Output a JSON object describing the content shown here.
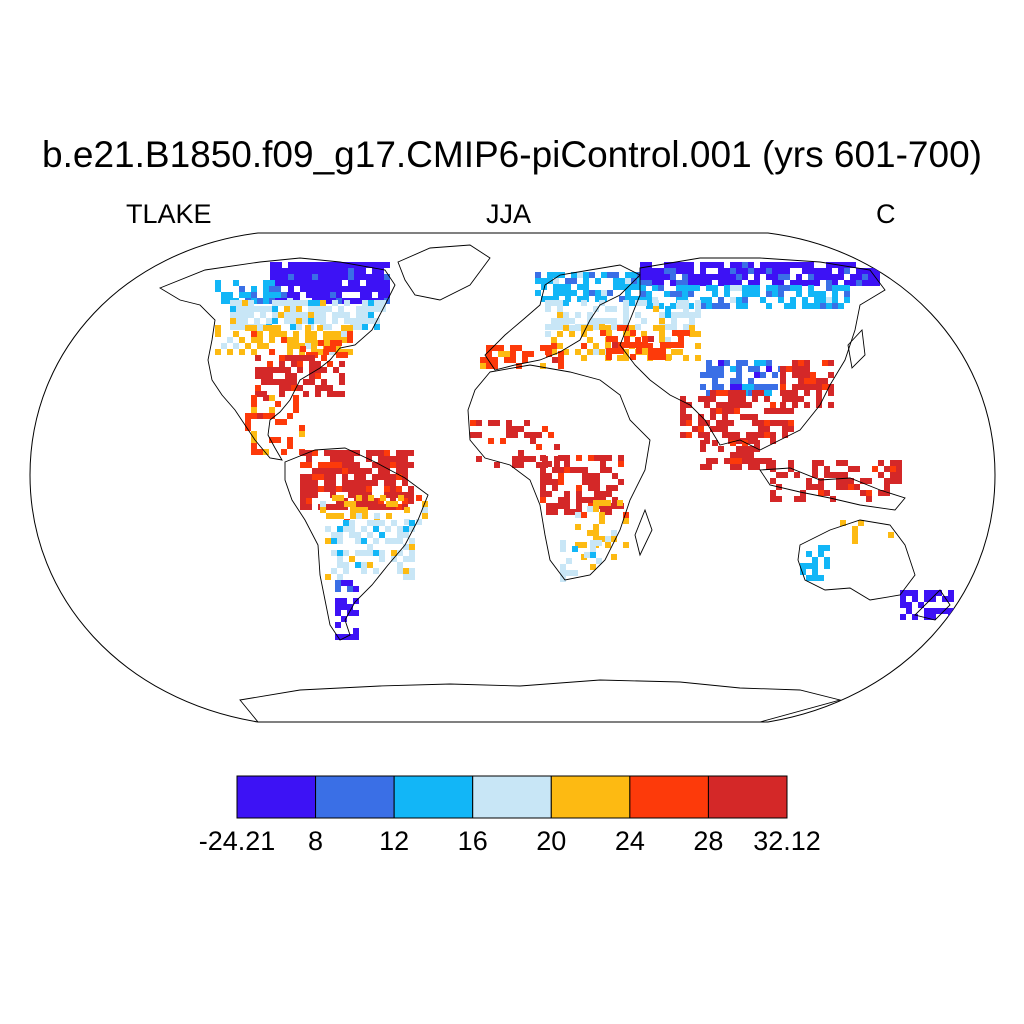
{
  "title": "b.e21.B1850.f09_g17.CMIP6-piControl.001 (yrs 601-700)",
  "left_label": "TLAKE",
  "center_label": "JJA",
  "right_label": "C",
  "colorbar": {
    "labels": [
      "-24.21",
      "8",
      "12",
      "16",
      "20",
      "24",
      "28",
      "32.12"
    ],
    "colors": [
      "#3d12f5",
      "#3a6fe6",
      "#12b6f7",
      "#c8e6f6",
      "#fdba12",
      "#fd3a0a",
      "#d42828"
    ]
  },
  "map": {
    "projection": "Robinson",
    "projection_name": "Robinson",
    "coastline_color": "#000000",
    "ocean_color": "#ffffff",
    "regions": [
      {
        "name": "northern-canada",
        "color_index": 0
      },
      {
        "name": "central-canada",
        "color_index": 1
      },
      {
        "name": "southern-canada",
        "color_index": 3
      },
      {
        "name": "great-lakes",
        "color_index": 4
      },
      {
        "name": "eastern-usa",
        "color_index": 6
      },
      {
        "name": "mexico-central-america",
        "color_index": 5
      },
      {
        "name": "amazon",
        "color_index": 6
      },
      {
        "name": "southern-brazil",
        "color_index": 3
      },
      {
        "name": "patagonia",
        "color_index": 0
      },
      {
        "name": "sahel",
        "color_index": 6
      },
      {
        "name": "central-africa",
        "color_index": 6
      },
      {
        "name": "southern-africa",
        "color_index": 4
      },
      {
        "name": "scandinavia",
        "color_index": 2
      },
      {
        "name": "siberia",
        "color_index": 0
      },
      {
        "name": "central-russia",
        "color_index": 2
      },
      {
        "name": "central-asia",
        "color_index": 4
      },
      {
        "name": "india",
        "color_index": 6
      },
      {
        "name": "china",
        "color_index": 6
      },
      {
        "name": "southeast-asia",
        "color_index": 6
      },
      {
        "name": "australia-west",
        "color_index": 2
      },
      {
        "name": "new-zealand",
        "color_index": 0
      }
    ]
  }
}
